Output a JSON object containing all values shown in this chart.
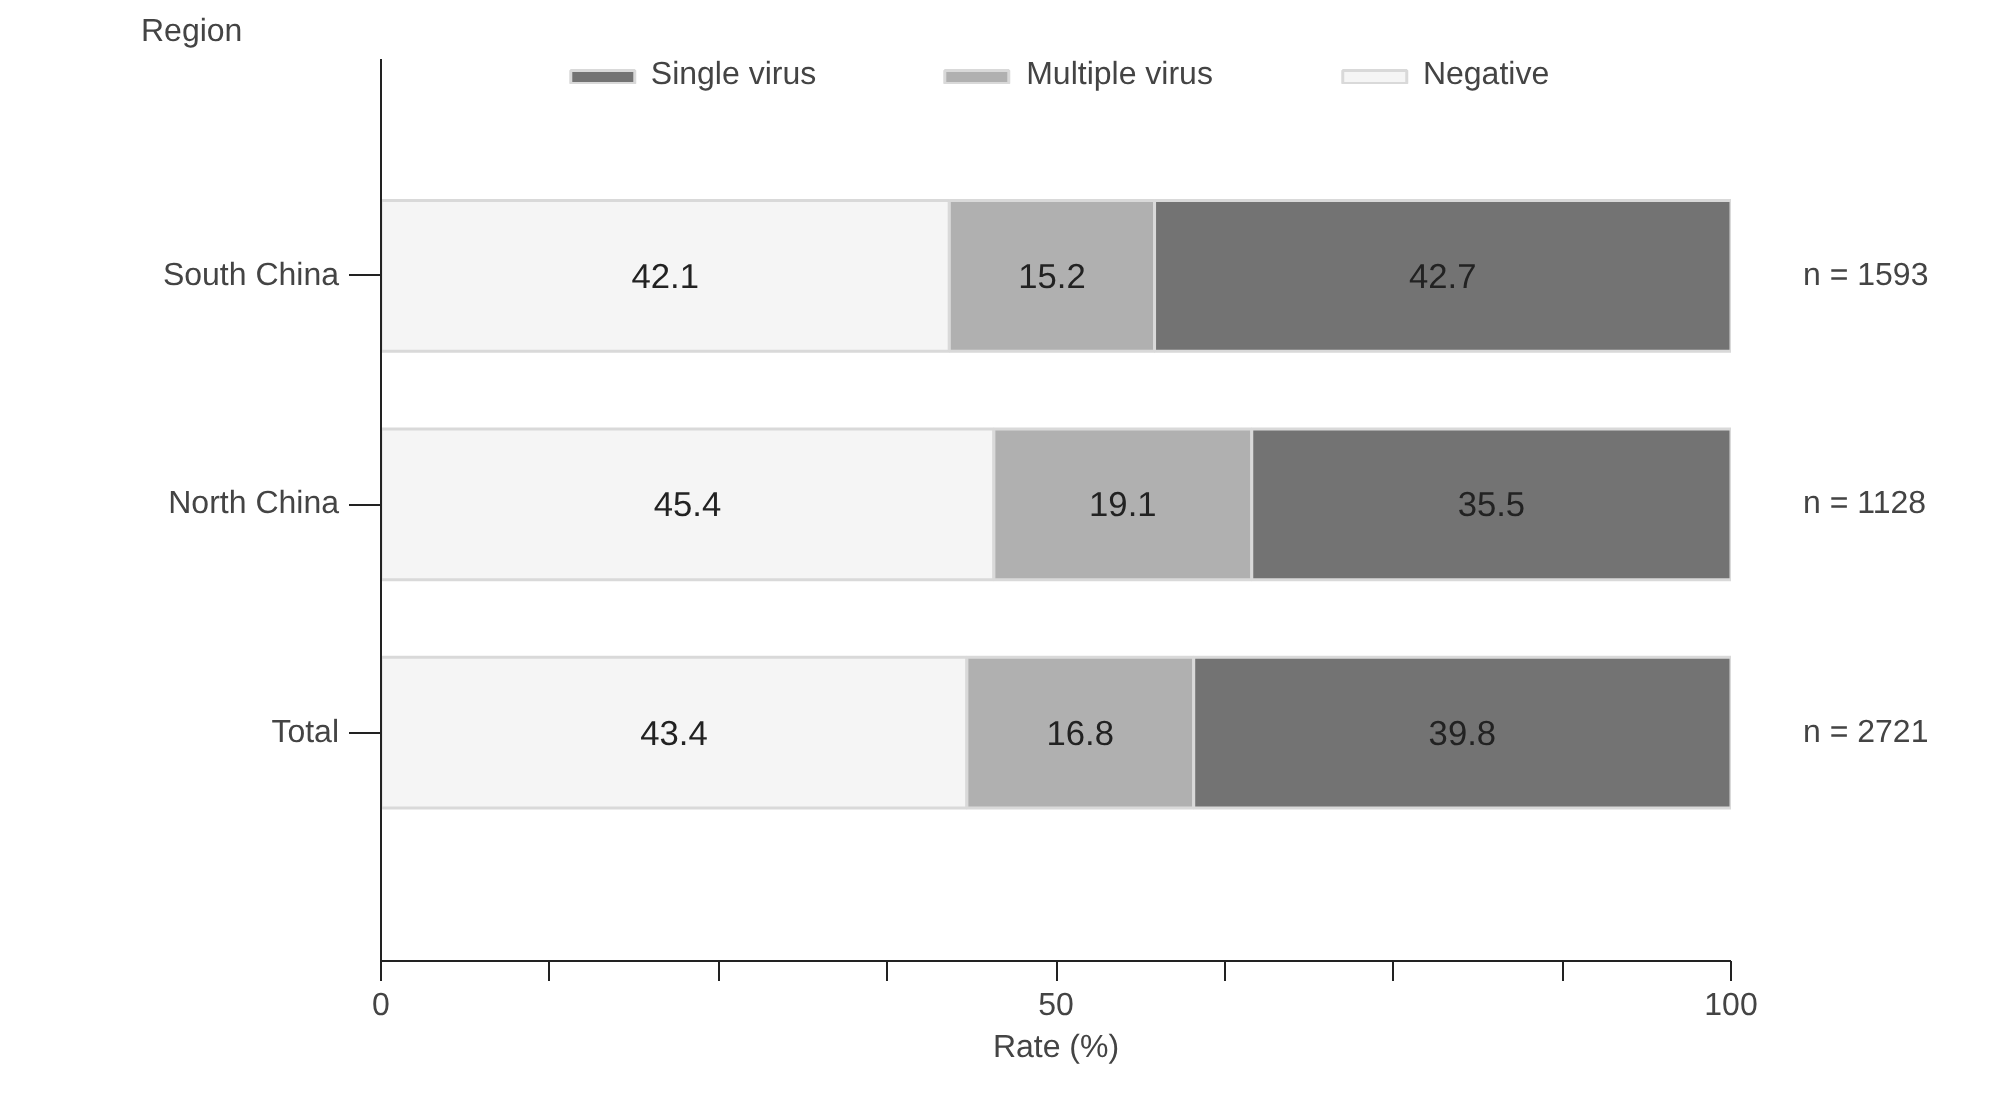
{
  "chart_data": {
    "type": "bar",
    "orientation": "horizontal",
    "stacked": true,
    "xlabel": "Rate (%)",
    "ylabel": "Region",
    "categories": [
      "South China",
      "North China",
      "Total"
    ],
    "series": [
      {
        "name": "Negative",
        "color": "#f5f5f5",
        "values": [
          42.1,
          45.4,
          43.4
        ]
      },
      {
        "name": "Multiple virus",
        "color": "#b0b0b0",
        "values": [
          15.2,
          19.1,
          16.8
        ]
      },
      {
        "name": "Single virus",
        "color": "#737373",
        "values": [
          42.7,
          35.5,
          39.8
        ]
      }
    ],
    "xlim": [
      0,
      100
    ],
    "xticks": [
      0,
      {
        "value": 12.5,
        "label": null
      },
      {
        "value": 25,
        "label": null
      },
      {
        "value": 37.5,
        "label": null
      },
      50,
      {
        "value": 62.5,
        "label": null
      },
      {
        "value": 75,
        "label": null
      },
      {
        "value": 87.5,
        "label": null
      },
      100
    ],
    "data_labels": true,
    "grid": false,
    "legend": "top",
    "annotations": [
      "n = 1593",
      "n = 1128",
      "n = 2721"
    ]
  }
}
